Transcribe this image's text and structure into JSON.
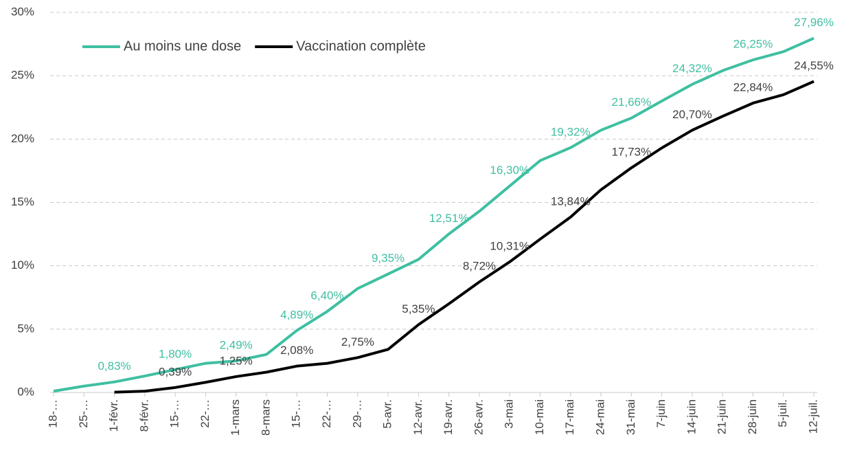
{
  "chart_data": {
    "type": "line",
    "categories": [
      "18-…",
      "25-…",
      "1-févr.",
      "8-févr.",
      "15-…",
      "22-…",
      "1-mars",
      "8-mars",
      "15-…",
      "22-…",
      "29-…",
      "5-avr.",
      "12-avr.",
      "19-avr.",
      "26-avr.",
      "3-mai",
      "10-mai",
      "17-mai",
      "24-mai",
      "31-mai",
      "7-juin",
      "14-juin",
      "21-juin",
      "28-juin",
      "5-juil.",
      "12-juil."
    ],
    "series": [
      {
        "name": "Au moins une dose",
        "color": "#3fbfa2",
        "values": [
          0.1,
          0.5,
          0.83,
          1.3,
          1.8,
          2.3,
          2.49,
          3.0,
          4.89,
          6.4,
          8.2,
          9.35,
          10.5,
          12.51,
          14.3,
          16.3,
          18.3,
          19.32,
          20.7,
          21.66,
          23.0,
          24.32,
          25.4,
          26.25,
          26.9,
          27.96
        ],
        "value_labels": [
          null,
          null,
          "0,83%",
          null,
          "1,80%",
          null,
          "2,49%",
          null,
          "4,89%",
          "6,40%",
          null,
          "9,35%",
          null,
          "12,51%",
          null,
          "16,30%",
          null,
          "19,32%",
          null,
          "21,66%",
          null,
          "24,32%",
          null,
          "26,25%",
          null,
          "27,96%"
        ]
      },
      {
        "name": "Vaccination complète",
        "color": "#000000",
        "values": [
          null,
          null,
          0.02,
          0.1,
          0.39,
          0.8,
          1.25,
          1.6,
          2.08,
          2.3,
          2.75,
          3.4,
          5.35,
          7.0,
          8.72,
          10.31,
          12.1,
          13.84,
          16.0,
          17.73,
          19.3,
          20.7,
          21.8,
          22.84,
          23.5,
          24.55
        ],
        "value_labels": [
          null,
          null,
          null,
          null,
          "0,39%",
          null,
          "1,25%",
          null,
          "2,08%",
          null,
          "2,75%",
          null,
          "5,35%",
          null,
          "8,72%",
          "10,31%",
          null,
          "13,84%",
          null,
          "17,73%",
          null,
          "20,70%",
          null,
          "22,84%",
          null,
          "24,55%"
        ]
      }
    ],
    "ylim": [
      0,
      30
    ],
    "yticks": [
      {
        "value": 0,
        "label": "0%"
      },
      {
        "value": 5,
        "label": "5%"
      },
      {
        "value": 10,
        "label": "10%"
      },
      {
        "value": 15,
        "label": "15%"
      },
      {
        "value": 20,
        "label": "20%"
      },
      {
        "value": 25,
        "label": "25%"
      },
      {
        "value": 30,
        "label": "30%"
      }
    ],
    "grid": true,
    "legend": "top-left"
  }
}
